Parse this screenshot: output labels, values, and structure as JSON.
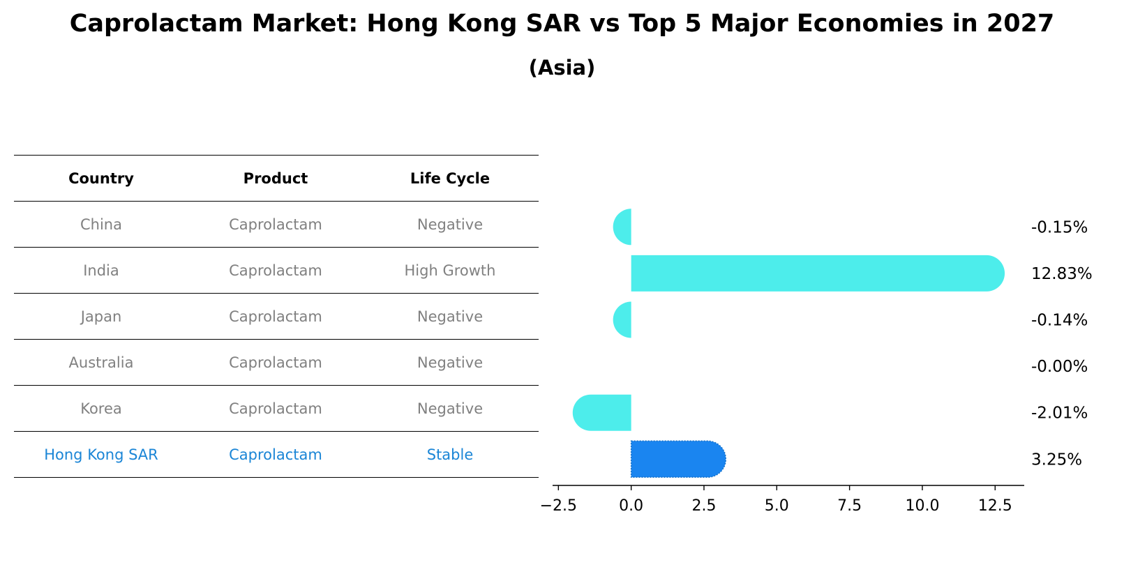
{
  "title": "Caprolactam Market: Hong Kong SAR vs Top 5 Major Economies in 2027",
  "subtitle": "(Asia)",
  "table": {
    "headers": [
      "Country",
      "Product",
      "Life Cycle"
    ],
    "rows": [
      [
        "China",
        "Caprolactam",
        "Negative"
      ],
      [
        "India",
        "Caprolactam",
        "High Growth"
      ],
      [
        "Japan",
        "Caprolactam",
        "Negative"
      ],
      [
        "Australia",
        "Caprolactam",
        "Negative"
      ],
      [
        "Korea",
        "Caprolactam",
        "Negative"
      ],
      [
        "Hong Kong SAR",
        "Caprolactam",
        "Stable"
      ]
    ]
  },
  "colors": {
    "bar": "#4dedeb",
    "highlight_bar": "#1a85f0",
    "highlight_text": "#1a85d6",
    "muted_text": "#808080"
  },
  "chart_data": {
    "type": "bar",
    "orientation": "horizontal",
    "categories": [
      "China",
      "India",
      "Japan",
      "Australia",
      "Korea",
      "Hong Kong SAR"
    ],
    "values": [
      -0.15,
      12.83,
      -0.14,
      -0.0,
      -2.01,
      3.25
    ],
    "value_labels": [
      "-0.15%",
      "12.83%",
      "-0.14%",
      "-0.00%",
      "-2.01%",
      "3.25%"
    ],
    "highlight": "Hong Kong SAR",
    "xlim": [
      -2.7,
      13.5
    ],
    "xticks": [
      -2.5,
      0.0,
      2.5,
      5.0,
      7.5,
      10.0,
      12.5
    ],
    "xtick_labels": [
      "−2.5",
      "0.0",
      "2.5",
      "5.0",
      "7.5",
      "10.0",
      "12.5"
    ]
  }
}
